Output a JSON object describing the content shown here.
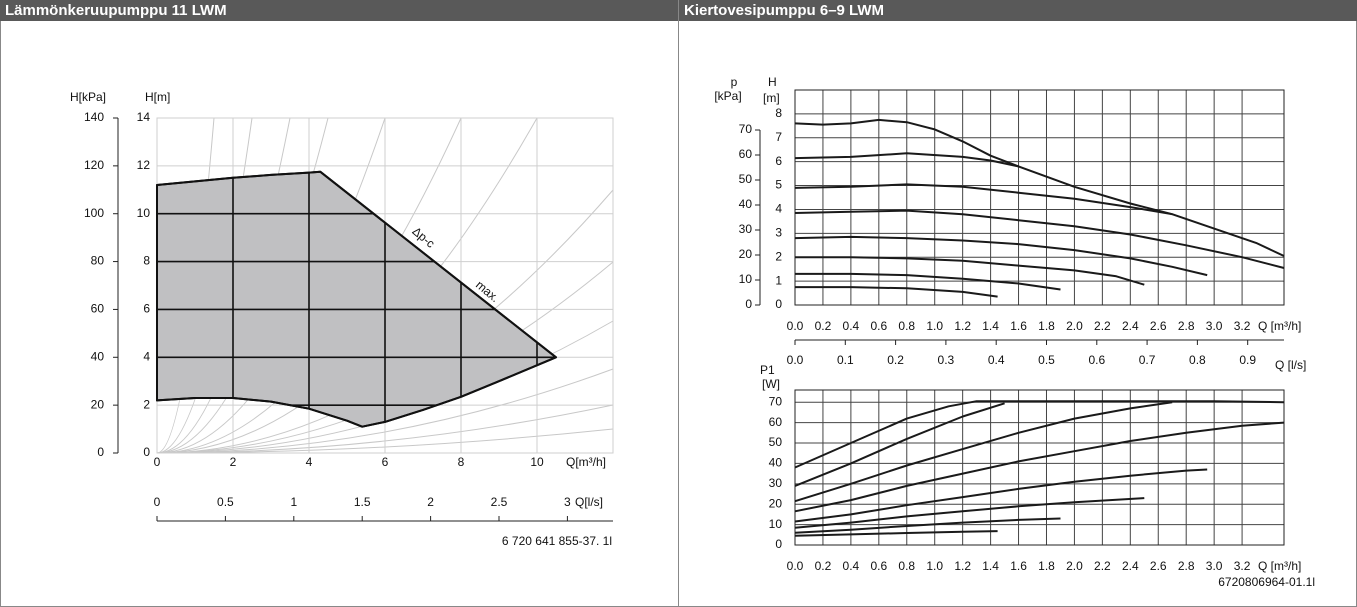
{
  "header": [
    "Lämmönkeruupumppu 11 LWM",
    "Kiertovesipumppu 6–9 LWM"
  ],
  "chart_data": [
    {
      "type": "area",
      "xlabel": "Q[m³/h]",
      "ylabel": "H[m]",
      "y2label": "H[kPa]",
      "x2label": "Q[l/s]",
      "xlim": [
        0,
        12
      ],
      "xticks": [
        0,
        2,
        4,
        6,
        8,
        10
      ],
      "ylim": [
        0,
        14
      ],
      "yticks": [
        0,
        2,
        4,
        6,
        8,
        10,
        12,
        14
      ],
      "y2lim": [
        0,
        140
      ],
      "y2ticks": [
        0,
        20,
        40,
        60,
        80,
        100,
        120,
        140
      ],
      "x2lim": [
        0,
        3.3333
      ],
      "x2ticks": [
        0,
        0.5,
        1,
        1.5,
        2,
        2.5,
        3
      ],
      "grid": true,
      "color": "#c0c0c2",
      "x": [
        0,
        1,
        2,
        3,
        4,
        4.3,
        10.5,
        9,
        8,
        7,
        6,
        5.4,
        5,
        4,
        3,
        2,
        1,
        0
      ],
      "values": [
        11.2,
        11.35,
        11.5,
        11.62,
        11.72,
        11.75,
        4,
        3.0,
        2.35,
        1.8,
        1.3,
        1.1,
        1.35,
        1.85,
        2.15,
        2.3,
        2.3,
        2.2
      ],
      "annotations": [
        "Δp-c",
        "max."
      ],
      "note": "6 720 641 855-37. 1l"
    },
    {
      "type": "line",
      "xlabel": "Q [m³/h]",
      "ylabel": "H",
      "yunit": "[m]",
      "y2label": "p",
      "y2unit": "[kPa]",
      "xlim": [
        0,
        3.5
      ],
      "xticks": [
        {
          "value": 0,
          "label": "0.0"
        },
        0.2,
        0.4,
        0.6,
        0.8,
        {
          "value": 1,
          "label": "1.0"
        },
        1.2,
        1.4,
        1.6,
        1.8,
        {
          "value": 2,
          "label": "2.0"
        },
        2.2,
        2.4,
        2.6,
        2.8,
        {
          "value": 3,
          "label": "3.0"
        },
        3.2
      ],
      "ylim": [
        0,
        9
      ],
      "yticks": [
        0,
        1,
        2,
        3,
        4,
        5,
        6,
        7,
        8
      ],
      "y2lim": [
        0,
        86
      ],
      "y2ticks": [
        0,
        10,
        20,
        30,
        40,
        50,
        60,
        70
      ],
      "grid": true,
      "series": [
        {
          "color": "#1a1a1a",
          "x": [
            0,
            0.2,
            0.4,
            0.6,
            0.8,
            1.0,
            1.2,
            1.4,
            1.6,
            2.0,
            2.4,
            2.7,
            3.0,
            3.3,
            3.5
          ],
          "values": [
            7.6,
            7.55,
            7.6,
            7.75,
            7.65,
            7.35,
            6.85,
            6.25,
            5.8,
            4.95,
            4.25,
            3.8,
            3.2,
            2.6,
            2.05
          ]
        },
        {
          "color": "#1a1a1a",
          "x": [
            0,
            0.4,
            0.8,
            1.2,
            1.4,
            1.6
          ],
          "values": [
            6.15,
            6.2,
            6.35,
            6.2,
            6.05,
            5.8
          ]
        },
        {
          "color": "#1a1a1a",
          "x": [
            0,
            0.4,
            0.8,
            1.2,
            1.6,
            2.0,
            2.4,
            2.7
          ],
          "values": [
            4.9,
            4.95,
            5.05,
            4.95,
            4.7,
            4.45,
            4.1,
            3.8
          ]
        },
        {
          "color": "#1a1a1a",
          "x": [
            0,
            0.4,
            0.8,
            1.2,
            1.6,
            2.0,
            2.4,
            2.8,
            3.2,
            3.5
          ],
          "values": [
            3.85,
            3.9,
            3.95,
            3.8,
            3.55,
            3.3,
            2.95,
            2.5,
            2.0,
            1.55
          ]
        },
        {
          "color": "#1a1a1a",
          "x": [
            0,
            0.4,
            0.8,
            1.2,
            1.6,
            2.0,
            2.4,
            2.7,
            2.95
          ],
          "values": [
            2.8,
            2.85,
            2.8,
            2.7,
            2.55,
            2.3,
            1.95,
            1.6,
            1.25
          ]
        },
        {
          "color": "#1a1a1a",
          "x": [
            0,
            0.4,
            0.8,
            1.2,
            1.6,
            2.0,
            2.3,
            2.5
          ],
          "values": [
            2.0,
            2.0,
            1.95,
            1.85,
            1.65,
            1.45,
            1.2,
            0.85
          ]
        },
        {
          "color": "#1a1a1a",
          "x": [
            0,
            0.4,
            0.8,
            1.2,
            1.6,
            1.9
          ],
          "values": [
            1.3,
            1.3,
            1.25,
            1.1,
            0.9,
            0.65
          ]
        },
        {
          "color": "#1a1a1a",
          "x": [
            0,
            0.4,
            0.8,
            1.2,
            1.45
          ],
          "values": [
            0.75,
            0.75,
            0.7,
            0.55,
            0.35
          ]
        }
      ]
    },
    {
      "type": "line",
      "xlabel": "Q [m³/h]",
      "ylabel": "P1",
      "yunit": "[W]",
      "x2label": "Q [l/s]",
      "xlim": [
        0,
        3.5
      ],
      "xticks": [
        {
          "value": 0,
          "label": "0.0"
        },
        0.2,
        0.4,
        0.6,
        0.8,
        {
          "value": 1,
          "label": "1.0"
        },
        1.2,
        1.4,
        1.6,
        1.8,
        {
          "value": 2,
          "label": "2.0"
        },
        2.2,
        2.4,
        2.6,
        2.8,
        {
          "value": 3,
          "label": "3.0"
        },
        3.2
      ],
      "x2lim": [
        0,
        0.9722
      ],
      "x2ticks": [
        {
          "value": 0,
          "label": "0.0"
        },
        0.1,
        0.2,
        0.3,
        0.4,
        0.5,
        0.6,
        0.7,
        0.8,
        0.9
      ],
      "ylim": [
        0,
        76
      ],
      "yticks": [
        0,
        10,
        20,
        30,
        40,
        50,
        60,
        70
      ],
      "grid": true,
      "series": [
        {
          "color": "#1a1a1a",
          "x": [
            0,
            0.4,
            0.8,
            1.1,
            1.3,
            2.0,
            3.0,
            3.5
          ],
          "values": [
            38,
            50,
            62,
            68,
            70.5,
            70.5,
            70.5,
            70
          ]
        },
        {
          "color": "#1a1a1a",
          "x": [
            0,
            0.4,
            0.8,
            1.2,
            1.5
          ],
          "values": [
            29,
            40,
            52,
            63,
            69.5
          ]
        },
        {
          "color": "#1a1a1a",
          "x": [
            0,
            0.4,
            0.8,
            1.2,
            1.6,
            2.0,
            2.4,
            2.7
          ],
          "values": [
            21.5,
            30,
            39,
            47,
            55,
            62,
            67,
            70
          ]
        },
        {
          "color": "#1a1a1a",
          "x": [
            0,
            0.4,
            0.8,
            1.2,
            1.6,
            2.0,
            2.4,
            2.8,
            3.2,
            3.5
          ],
          "values": [
            16.5,
            22,
            29,
            35,
            41,
            46,
            51,
            55,
            58.5,
            60
          ]
        },
        {
          "color": "#1a1a1a",
          "x": [
            0,
            0.4,
            0.8,
            1.2,
            1.6,
            2.0,
            2.4,
            2.8,
            2.95
          ],
          "values": [
            11.5,
            15,
            19.5,
            23.5,
            27.5,
            31,
            34,
            36.5,
            37
          ]
        },
        {
          "color": "#1a1a1a",
          "x": [
            0,
            0.4,
            0.8,
            1.2,
            1.6,
            2.0,
            2.5
          ],
          "values": [
            8.5,
            11,
            14,
            16.5,
            19,
            21,
            23
          ]
        },
        {
          "color": "#1a1a1a",
          "x": [
            0,
            0.4,
            0.8,
            1.2,
            1.6,
            1.9
          ],
          "values": [
            6,
            7.5,
            9.3,
            11,
            12.3,
            13
          ]
        },
        {
          "color": "#1a1a1a",
          "x": [
            0,
            0.4,
            0.8,
            1.2,
            1.45
          ],
          "values": [
            4.5,
            5.2,
            5.9,
            6.5,
            6.8
          ]
        }
      ],
      "note": "6720806964-01.1l"
    }
  ]
}
